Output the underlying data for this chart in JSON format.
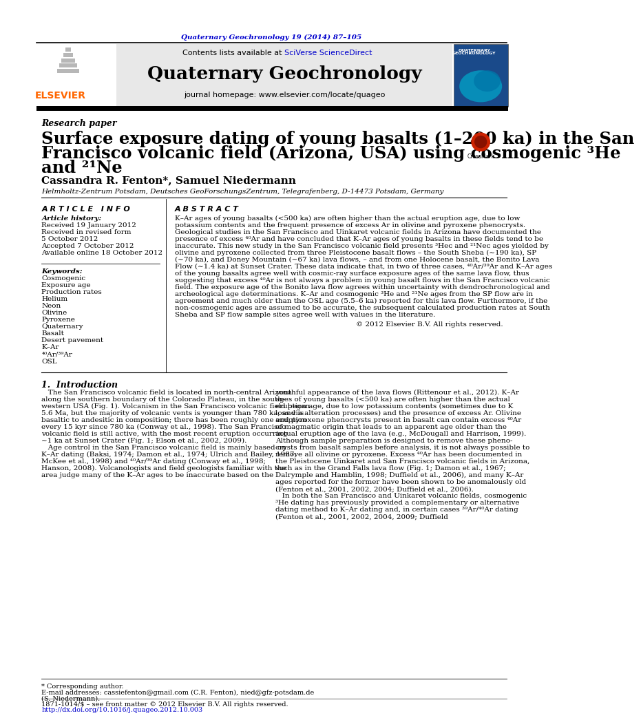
{
  "page_title": "Quaternary Geochronology 19 (2014) 87–105",
  "journal_name": "Quaternary Geochronology",
  "journal_homepage": "journal homepage: www.elsevier.com/locate/quageo",
  "article_type": "Research paper",
  "paper_title_line1": "Surface exposure dating of young basalts (1–200 ka) in the San",
  "paper_title_line2": "Francisco volcanic field (Arizona, USA) using cosmogenic ³He",
  "paper_title_line3": "and ²¹Ne",
  "authors": "Cassandra R. Fenton*, Samuel Niedermann",
  "affiliation": "Helmholtz-Zentrum Potsdam, Deutsches GeoForschungsZentrum, Telegrafenberg, D-14473 Potsdam, Germany",
  "article_info_label": "A R T I C L E   I N F O",
  "abstract_label": "A B S T R A C T",
  "article_history_label": "Article history:",
  "received_1": "Received 19 January 2012",
  "received_2": "Received in revised form",
  "received_2b": "5 October 2012",
  "accepted": "Accepted 7 October 2012",
  "available": "Available online 18 October 2012",
  "keywords_label": "Keywords:",
  "keywords": [
    "Cosmogenic",
    "Exposure age",
    "Production rates",
    "Helium",
    "Neon",
    "Olivine",
    "Pyroxene",
    "Quaternary",
    "Basalt",
    "Desert pavement",
    "K–Ar",
    "⁴⁰Ar/³⁹Ar",
    "OSL"
  ],
  "copyright": "© 2012 Elsevier B.V. All rights reserved.",
  "intro_label": "1.  Introduction",
  "footer_issn": "1871-1014/$ – see front matter © 2012 Elsevier B.V. All rights reserved.",
  "footer_doi": "http://dx.doi.org/10.1016/j.quageo.2012.10.003",
  "footer_corr": "* Corresponding author.",
  "footer_email": "E-mail addresses: cassiefenton@gmail.com (C.R. Fenton), nied@gfz-potsdam.de",
  "footer_email2": "(S. Niedermann).",
  "elsevier_text": "ELSEVIER",
  "elsevier_color": "#FF6600",
  "link_color": "#0000CC",
  "bg_header_color": "#E8E8E8",
  "abstract_lines": [
    "K–Ar ages of young basalts (<500 ka) are often higher than the actual eruption age, due to low",
    "potassium contents and the frequent presence of excess Ar in olivine and pyroxene phenocrysts.",
    "Geological studies in the San Francisco and Uinkaret volcanic fields in Arizona have documented the",
    "presence of excess ⁴⁰Ar and have concluded that K–Ar ages of young basalts in these fields tend to be",
    "inaccurate. This new study in the San Francisco volcanic field presents ³Heᴄ and ²¹Neᴄ ages yielded by",
    "olivine and pyroxene collected from three Pleistocene basalt flows – the South Sheba (∼190 ka), SP",
    "(∼70 ka), and Doney Mountain (∼67 ka) lava flows, – and from one Holocene basalt, the Bonito Lava",
    "Flow (∼1.4 ka) at Sunset Crater. These data indicate that, in two of three cases, ⁴⁰Ar/³⁹Ar and K–Ar ages",
    "of the young basalts agree well with cosmic-ray surface exposure ages of the same lava flow, thus",
    "suggesting that excess ⁴⁰Ar is not always a problem in young basalt flows in the San Francisco volcanic",
    "field. The exposure age of the Bonito lava flow agrees within uncertainty with dendrochronological and",
    "archeological age determinations. K–Ar and cosmogenic ³He and ²¹Ne ages from the SP flow are in",
    "agreement and much older than the OSL age (5.5–6 ka) reported for this lava flow. Furthermore, if the",
    "non-cosmogenic ages are assumed to be accurate, the subsequent calculated production rates at South",
    "Sheba and SP flow sample sites agree well with values in the literature."
  ],
  "intro_col1_lines": [
    "   The San Francisco volcanic field is located in north-central Arizona",
    "along the southern boundary of the Colorado Plateau, in the south-",
    "western USA (Fig. 1). Volcanism in the San Francisco volcanic field began",
    "5.6 Ma, but the majority of volcanic vents is younger than 780 ka, and is",
    "basaltic to andesitic in composition; there has been roughly one eruption",
    "every 15 kyr since 780 ka (Conway et al., 1998). The San Francisco",
    "volcanic field is still active, with the most recent eruption occurring",
    "∼1 ka at Sunset Crater (Fig. 1; Elson et al., 2002, 2009).",
    "   Age control in the San Francisco volcanic field is mainly based on",
    "K–Ar dating (Baksi, 1974; Damon et al., 1974; Ulrich and Bailey, 1987;",
    "McKee et al., 1998) and ⁴⁰Ar/³⁹Ar dating (Conway et al., 1998;",
    "Hanson, 2008). Volcanologists and field geologists familiar with the",
    "area judge many of the K–Ar ages to be inaccurate based on the"
  ],
  "intro_col2_lines": [
    "youthful appearance of the lava flows (Rittenour et al., 2012). K–Ar",
    "ages of young basalts (<500 ka) are often higher than the actual",
    "eruption age, due to low potassium contents (sometimes due to K",
    "loss via alteration processes) and the presence of excess Ar. Olivine",
    "and pyroxene phenocrysts present in basalt can contain excess ⁴⁰Ar",
    "of magmatic origin that leads to an apparent age older than the",
    "actual eruption age of the lava (e.g., McDougall and Harrison, 1999).",
    "Although sample preparation is designed to remove these pheno-",
    "crysts from basalt samples before analysis, it is not always possible to",
    "remove all olivine or pyroxene. Excess ⁴⁰Ar has been documented in",
    "the Pleistocene Uinkaret and San Francisco volcanic fields in Arizona,",
    "such as in the Grand Falls lava flow (Fig. 1; Damon et al., 1967;",
    "Dalrymple and Hamblin, 1998; Duffield et al., 2006), and many K–Ar",
    "ages reported for the former have been shown to be anomalously old",
    "(Fenton et al., 2001, 2002, 2004; Duffield et al., 2006).",
    "   In both the San Francisco and Uinkaret volcanic fields, cosmogenic",
    "³He dating has previously provided a complementary or alternative",
    "dating method to K–Ar dating and, in certain cases ³⁹Ar/⁴⁰Ar dating",
    "(Fenton et al., 2001, 2002, 2004, 2009; Duffield"
  ]
}
